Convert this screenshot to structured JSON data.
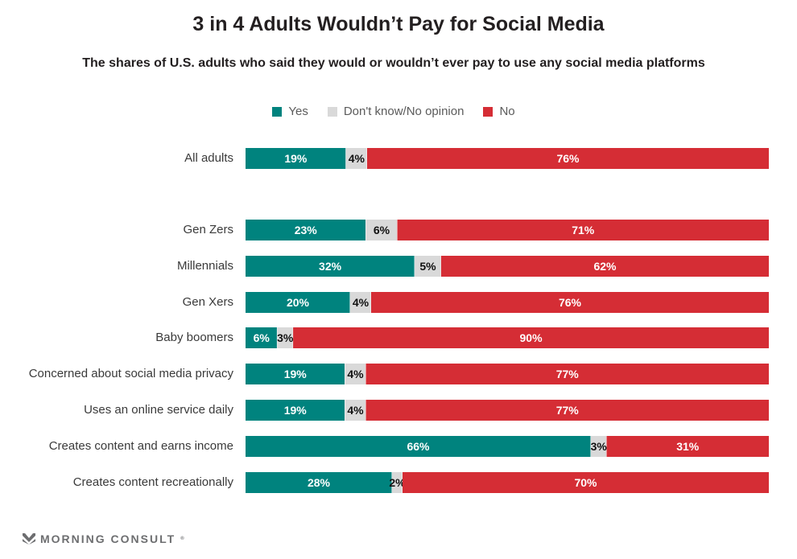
{
  "colors": {
    "yes": "#00837e",
    "dont_know": "#d9d9d9",
    "no": "#d52d35"
  },
  "legend": [
    {
      "key": "yes",
      "label": "Yes"
    },
    {
      "key": "dont_know",
      "label": "Don't know/No opinion"
    },
    {
      "key": "no",
      "label": "No"
    }
  ],
  "branding": {
    "logo_text": "MORNING CONSULT",
    "logo_mark": "®"
  },
  "chart_data": {
    "type": "bar",
    "orientation": "horizontal",
    "stacked": true,
    "title": "3 in 4 Adults Wouldn’t Pay for Social Media",
    "subtitle": "The shares of U.S. adults who said they would or wouldn’t ever pay to use any social media platforms",
    "xlabel": "",
    "ylabel": "",
    "xlim": [
      0,
      100
    ],
    "grid": false,
    "legend_position": "top-center",
    "categories": [
      "All adults",
      "Gen Zers",
      "Millennials",
      "Gen Xers",
      "Baby boomers",
      "Concerned about social media privacy",
      "Uses an online service daily",
      "Creates content and earns income",
      "Creates content recreationally"
    ],
    "series": [
      {
        "name": "Yes",
        "key": "yes",
        "values": [
          19,
          23,
          32,
          20,
          6,
          19,
          19,
          66,
          28
        ]
      },
      {
        "name": "Don't know/No opinion",
        "key": "dont_know",
        "values": [
          4,
          6,
          5,
          4,
          3,
          4,
          4,
          3,
          2
        ]
      },
      {
        "name": "No",
        "key": "no",
        "values": [
          76,
          71,
          62,
          76,
          90,
          77,
          77,
          31,
          70
        ]
      }
    ]
  }
}
